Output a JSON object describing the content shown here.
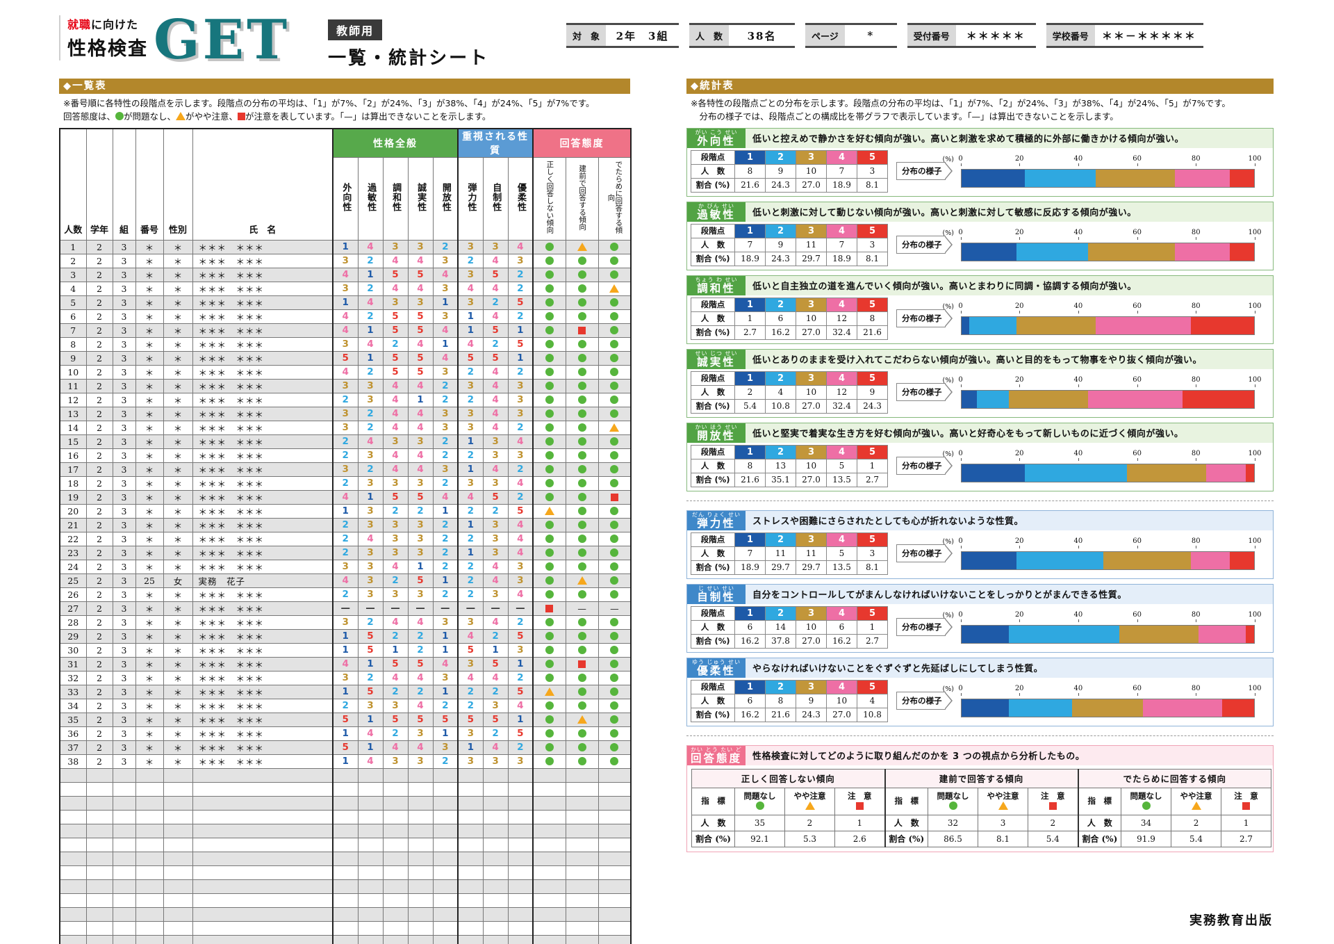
{
  "page": {
    "logo_red": "就職",
    "logo_rest": "に向けた",
    "logo_line2": "性格検査",
    "logo_mark": "GET",
    "badge": "教師用",
    "sheet_title": "一覧・統計シート",
    "publisher": "実務教育出版"
  },
  "info_boxes": [
    {
      "label": "対　象",
      "value": "2年　3組"
    },
    {
      "label": "人　数",
      "value": "38名"
    },
    {
      "label": "ページ",
      "value": "*"
    },
    {
      "label": "受付番号",
      "value": "＊＊＊＊＊"
    },
    {
      "label": "学校番号",
      "value": "＊＊－＊＊＊＊＊"
    }
  ],
  "list_section": {
    "banner": "◆一覧表",
    "note1": "※番号順に各特性の段階点を示します。段階点の分布の平均は、「1」が7%、「2」が24%、「3」が38%、「4」が24%、「5」が7%です。",
    "note2_parts": [
      {
        "t": "txt",
        "v": "回答態度は、"
      },
      {
        "t": "g"
      },
      {
        "t": "txt",
        "v": "が問題なし、"
      },
      {
        "t": "y"
      },
      {
        "t": "txt",
        "v": "がやや注意、"
      },
      {
        "t": "r"
      },
      {
        "t": "txt",
        "v": "が注意を表しています。「—」は算出できないことを示します。"
      }
    ],
    "columns": {
      "left": [
        "人数",
        "学年",
        "組",
        "番号",
        "性別",
        "氏　名"
      ],
      "groups": [
        {
          "label": "性格全般",
          "theme": "green",
          "span": 5
        },
        {
          "label": "重視される性質",
          "theme": "blue",
          "span": 3
        },
        {
          "label": "回答態度",
          "theme": "pink",
          "span": 3
        }
      ],
      "traits": [
        "外向性",
        "過敏性",
        "調和性",
        "誠実性",
        "開放性",
        "弾力性",
        "自制性",
        "優柔性"
      ],
      "attitudes": [
        "正しく回答しない傾向",
        "建前で回答する傾向",
        "でたらめに回答する傾向"
      ]
    },
    "rows": [
      [
        1,
        "2",
        "3",
        "＊",
        "＊",
        "＊＊＊　＊＊＊",
        [
          "1",
          "4",
          "3",
          "3",
          "2",
          "3",
          "3",
          "4"
        ],
        [
          "g",
          "y",
          "g"
        ]
      ],
      [
        2,
        "2",
        "3",
        "＊",
        "＊",
        "＊＊＊　＊＊＊",
        [
          "3",
          "2",
          "4",
          "4",
          "3",
          "2",
          "4",
          "3"
        ],
        [
          "g",
          "g",
          "g"
        ]
      ],
      [
        3,
        "2",
        "3",
        "＊",
        "＊",
        "＊＊＊　＊＊＊",
        [
          "4",
          "1",
          "5",
          "5",
          "4",
          "3",
          "5",
          "2"
        ],
        [
          "g",
          "g",
          "g"
        ]
      ],
      [
        4,
        "2",
        "3",
        "＊",
        "＊",
        "＊＊＊　＊＊＊",
        [
          "3",
          "2",
          "4",
          "4",
          "3",
          "4",
          "4",
          "2"
        ],
        [
          "g",
          "g",
          "y"
        ]
      ],
      [
        5,
        "2",
        "3",
        "＊",
        "＊",
        "＊＊＊　＊＊＊",
        [
          "1",
          "4",
          "3",
          "3",
          "1",
          "3",
          "2",
          "5"
        ],
        [
          "g",
          "g",
          "g"
        ]
      ],
      [
        6,
        "2",
        "3",
        "＊",
        "＊",
        "＊＊＊　＊＊＊",
        [
          "4",
          "2",
          "5",
          "5",
          "3",
          "1",
          "4",
          "2"
        ],
        [
          "g",
          "g",
          "g"
        ]
      ],
      [
        7,
        "2",
        "3",
        "＊",
        "＊",
        "＊＊＊　＊＊＊",
        [
          "4",
          "1",
          "5",
          "5",
          "4",
          "1",
          "5",
          "1"
        ],
        [
          "g",
          "r",
          "g"
        ]
      ],
      [
        8,
        "2",
        "3",
        "＊",
        "＊",
        "＊＊＊　＊＊＊",
        [
          "3",
          "4",
          "2",
          "4",
          "1",
          "4",
          "2",
          "5"
        ],
        [
          "g",
          "g",
          "g"
        ]
      ],
      [
        9,
        "2",
        "3",
        "＊",
        "＊",
        "＊＊＊　＊＊＊",
        [
          "5",
          "1",
          "5",
          "5",
          "4",
          "5",
          "5",
          "1"
        ],
        [
          "g",
          "g",
          "g"
        ]
      ],
      [
        10,
        "2",
        "3",
        "＊",
        "＊",
        "＊＊＊　＊＊＊",
        [
          "4",
          "2",
          "5",
          "5",
          "3",
          "2",
          "4",
          "2"
        ],
        [
          "g",
          "g",
          "g"
        ]
      ],
      [
        11,
        "2",
        "3",
        "＊",
        "＊",
        "＊＊＊　＊＊＊",
        [
          "3",
          "3",
          "4",
          "4",
          "2",
          "3",
          "4",
          "3"
        ],
        [
          "g",
          "g",
          "g"
        ]
      ],
      [
        12,
        "2",
        "3",
        "＊",
        "＊",
        "＊＊＊　＊＊＊",
        [
          "2",
          "3",
          "4",
          "1",
          "2",
          "2",
          "4",
          "3"
        ],
        [
          "g",
          "g",
          "g"
        ]
      ],
      [
        13,
        "2",
        "3",
        "＊",
        "＊",
        "＊＊＊　＊＊＊",
        [
          "3",
          "2",
          "4",
          "4",
          "3",
          "3",
          "4",
          "3"
        ],
        [
          "g",
          "g",
          "g"
        ]
      ],
      [
        14,
        "2",
        "3",
        "＊",
        "＊",
        "＊＊＊　＊＊＊",
        [
          "3",
          "2",
          "4",
          "4",
          "3",
          "3",
          "4",
          "2"
        ],
        [
          "g",
          "g",
          "y"
        ]
      ],
      [
        15,
        "2",
        "3",
        "＊",
        "＊",
        "＊＊＊　＊＊＊",
        [
          "2",
          "4",
          "3",
          "3",
          "2",
          "1",
          "3",
          "4"
        ],
        [
          "g",
          "g",
          "g"
        ]
      ],
      [
        16,
        "2",
        "3",
        "＊",
        "＊",
        "＊＊＊　＊＊＊",
        [
          "2",
          "3",
          "4",
          "4",
          "2",
          "2",
          "3",
          "3"
        ],
        [
          "g",
          "g",
          "g"
        ]
      ],
      [
        17,
        "2",
        "3",
        "＊",
        "＊",
        "＊＊＊　＊＊＊",
        [
          "3",
          "2",
          "4",
          "4",
          "3",
          "1",
          "4",
          "2"
        ],
        [
          "g",
          "g",
          "g"
        ]
      ],
      [
        18,
        "2",
        "3",
        "＊",
        "＊",
        "＊＊＊　＊＊＊",
        [
          "2",
          "3",
          "3",
          "3",
          "2",
          "3",
          "3",
          "4"
        ],
        [
          "g",
          "g",
          "g"
        ]
      ],
      [
        19,
        "2",
        "3",
        "＊",
        "＊",
        "＊＊＊　＊＊＊",
        [
          "4",
          "1",
          "5",
          "5",
          "4",
          "4",
          "5",
          "2"
        ],
        [
          "g",
          "g",
          "r"
        ]
      ],
      [
        20,
        "2",
        "3",
        "＊",
        "＊",
        "＊＊＊　＊＊＊",
        [
          "1",
          "3",
          "2",
          "2",
          "1",
          "2",
          "2",
          "5"
        ],
        [
          "y",
          "g",
          "g"
        ]
      ],
      [
        21,
        "2",
        "3",
        "＊",
        "＊",
        "＊＊＊　＊＊＊",
        [
          "2",
          "3",
          "3",
          "3",
          "2",
          "1",
          "3",
          "4"
        ],
        [
          "g",
          "g",
          "g"
        ]
      ],
      [
        22,
        "2",
        "3",
        "＊",
        "＊",
        "＊＊＊　＊＊＊",
        [
          "2",
          "4",
          "3",
          "3",
          "2",
          "2",
          "3",
          "4"
        ],
        [
          "g",
          "g",
          "g"
        ]
      ],
      [
        23,
        "2",
        "3",
        "＊",
        "＊",
        "＊＊＊　＊＊＊",
        [
          "2",
          "3",
          "3",
          "3",
          "2",
          "1",
          "3",
          "4"
        ],
        [
          "g",
          "g",
          "g"
        ]
      ],
      [
        24,
        "2",
        "3",
        "＊",
        "＊",
        "＊＊＊　＊＊＊",
        [
          "3",
          "3",
          "4",
          "1",
          "2",
          "2",
          "4",
          "3"
        ],
        [
          "g",
          "g",
          "g"
        ]
      ],
      [
        25,
        "2",
        "3",
        "25",
        "女",
        "実務　花子",
        [
          "4",
          "3",
          "2",
          "5",
          "1",
          "2",
          "4",
          "3"
        ],
        [
          "g",
          "y",
          "g"
        ]
      ],
      [
        26,
        "2",
        "3",
        "＊",
        "＊",
        "＊＊＊　＊＊＊",
        [
          "2",
          "3",
          "3",
          "3",
          "2",
          "2",
          "3",
          "4"
        ],
        [
          "g",
          "g",
          "g"
        ]
      ],
      [
        27,
        "2",
        "3",
        "＊",
        "＊",
        "＊＊＊　＊＊＊",
        [
          "-",
          "-",
          "-",
          "-",
          "-",
          "-",
          "-",
          "-"
        ],
        [
          "r",
          "-",
          "-"
        ]
      ],
      [
        28,
        "2",
        "3",
        "＊",
        "＊",
        "＊＊＊　＊＊＊",
        [
          "3",
          "2",
          "4",
          "4",
          "3",
          "3",
          "4",
          "2"
        ],
        [
          "g",
          "g",
          "g"
        ]
      ],
      [
        29,
        "2",
        "3",
        "＊",
        "＊",
        "＊＊＊　＊＊＊",
        [
          "1",
          "5",
          "2",
          "2",
          "1",
          "4",
          "2",
          "5"
        ],
        [
          "g",
          "g",
          "g"
        ]
      ],
      [
        30,
        "2",
        "3",
        "＊",
        "＊",
        "＊＊＊　＊＊＊",
        [
          "1",
          "5",
          "1",
          "2",
          "1",
          "5",
          "1",
          "3"
        ],
        [
          "g",
          "g",
          "g"
        ]
      ],
      [
        31,
        "2",
        "3",
        "＊",
        "＊",
        "＊＊＊　＊＊＊",
        [
          "4",
          "1",
          "5",
          "5",
          "4",
          "3",
          "5",
          "1"
        ],
        [
          "g",
          "r",
          "g"
        ]
      ],
      [
        32,
        "2",
        "3",
        "＊",
        "＊",
        "＊＊＊　＊＊＊",
        [
          "3",
          "2",
          "4",
          "4",
          "3",
          "4",
          "4",
          "2"
        ],
        [
          "g",
          "g",
          "g"
        ]
      ],
      [
        33,
        "2",
        "3",
        "＊",
        "＊",
        "＊＊＊　＊＊＊",
        [
          "1",
          "5",
          "2",
          "2",
          "1",
          "2",
          "2",
          "5"
        ],
        [
          "y",
          "g",
          "g"
        ]
      ],
      [
        34,
        "2",
        "3",
        "＊",
        "＊",
        "＊＊＊　＊＊＊",
        [
          "2",
          "3",
          "3",
          "4",
          "2",
          "2",
          "3",
          "4"
        ],
        [
          "g",
          "g",
          "g"
        ]
      ],
      [
        35,
        "2",
        "3",
        "＊",
        "＊",
        "＊＊＊　＊＊＊",
        [
          "5",
          "1",
          "5",
          "5",
          "5",
          "5",
          "5",
          "1"
        ],
        [
          "g",
          "y",
          "g"
        ]
      ],
      [
        36,
        "2",
        "3",
        "＊",
        "＊",
        "＊＊＊　＊＊＊",
        [
          "1",
          "4",
          "2",
          "3",
          "1",
          "3",
          "2",
          "5"
        ],
        [
          "g",
          "g",
          "g"
        ]
      ],
      [
        37,
        "2",
        "3",
        "＊",
        "＊",
        "＊＊＊　＊＊＊",
        [
          "5",
          "1",
          "4",
          "4",
          "3",
          "1",
          "4",
          "2"
        ],
        [
          "g",
          "g",
          "g"
        ]
      ],
      [
        38,
        "2",
        "3",
        "＊",
        "＊",
        "＊＊＊　＊＊＊",
        [
          "1",
          "4",
          "3",
          "3",
          "2",
          "3",
          "3",
          "3"
        ],
        [
          "g",
          "g",
          "g"
        ]
      ]
    ],
    "empty_rows": 15
  },
  "stats_section": {
    "banner": "◆統計表",
    "note1": "※各特性の段階点ごとの分布を示します。段階点の分布の平均は、「1」が7%、「2」が24%、「3」が38%、「4」が24%、「5」が7%です。",
    "note2": "　分布の様子では、段階点ごとの構成比を帯グラフで表示しています。「—」は算出できないことを示します。",
    "labels": {
      "grade_row": "段階点",
      "count_row": "人　数",
      "pct_row": "割合 (%)",
      "grades": [
        "1",
        "2",
        "3",
        "4",
        "5"
      ],
      "dist_label": "分布の様子",
      "axis_ticks": [
        "0",
        "20",
        "40",
        "60",
        "80",
        "100"
      ],
      "axis_unit": "(%)"
    },
    "sections": [
      {
        "name": "外向性",
        "furigana": "がい こう せい",
        "theme": "green",
        "desc": "低いと控えめで静かさを好む傾向が強い。高いと刺激を求めて積極的に外部に働きかける傾向が強い。",
        "counts": [
          "8",
          "9",
          "10",
          "7",
          "3"
        ],
        "pct": [
          "21.6",
          "24.3",
          "27.0",
          "18.9",
          "8.1"
        ]
      },
      {
        "name": "過敏性",
        "furigana": "か びん せい",
        "theme": "green",
        "desc": "低いと刺激に対して動じない傾向が強い。高いと刺激に対して敏感に反応する傾向が強い。",
        "counts": [
          "7",
          "9",
          "11",
          "7",
          "3"
        ],
        "pct": [
          "18.9",
          "24.3",
          "29.7",
          "18.9",
          "8.1"
        ]
      },
      {
        "name": "調和性",
        "furigana": "ちょう わ せい",
        "theme": "green",
        "desc": "低いと自主独立の道を進んでいく傾向が強い。高いとまわりに同調・協調する傾向が強い。",
        "counts": [
          "1",
          "6",
          "10",
          "12",
          "8"
        ],
        "pct": [
          "2.7",
          "16.2",
          "27.0",
          "32.4",
          "21.6"
        ]
      },
      {
        "name": "誠実性",
        "furigana": "せい じつ せい",
        "theme": "green",
        "desc": "低いとありのままを受け入れてこだわらない傾向が強い。高いと目的をもって物事をやり抜く傾向が強い。",
        "counts": [
          "2",
          "4",
          "10",
          "12",
          "9"
        ],
        "pct": [
          "5.4",
          "10.8",
          "27.0",
          "32.4",
          "24.3"
        ]
      },
      {
        "name": "開放性",
        "furigana": "かい ほう せい",
        "theme": "green",
        "desc": "低いと堅実で着実な生き方を好む傾向が強い。高いと好奇心をもって新しいものに近づく傾向が強い。",
        "counts": [
          "8",
          "13",
          "10",
          "5",
          "1"
        ],
        "pct": [
          "21.6",
          "35.1",
          "27.0",
          "13.5",
          "2.7"
        ]
      },
      {
        "name": "弾力性",
        "furigana": "だん りょく せい",
        "theme": "blue",
        "desc": "ストレスや困難にさらされたとしても心が折れないような性質。",
        "counts": [
          "7",
          "11",
          "11",
          "5",
          "3"
        ],
        "pct": [
          "18.9",
          "29.7",
          "29.7",
          "13.5",
          "8.1"
        ]
      },
      {
        "name": "自制性",
        "furigana": "じ せい せい",
        "theme": "blue",
        "desc": "自分をコントロールしてがまんしなければいけないことをしっかりとがまんできる性質。",
        "counts": [
          "6",
          "14",
          "10",
          "6",
          "1"
        ],
        "pct": [
          "16.2",
          "37.8",
          "27.0",
          "16.2",
          "2.7"
        ]
      },
      {
        "name": "優柔性",
        "furigana": "ゆう じゅう せい",
        "theme": "blue",
        "desc": "やらなければいけないことをぐずぐずと先延ばしにしてしまう性質。",
        "counts": [
          "6",
          "8",
          "9",
          "10",
          "4"
        ],
        "pct": [
          "16.2",
          "21.6",
          "24.3",
          "27.0",
          "10.8"
        ]
      }
    ],
    "attitude": {
      "name": "回答態度",
      "furigana": "かい とう たい ど",
      "theme": "pink",
      "desc": "性格検査に対してどのように取り組んだのかを 3 つの視点から分析したもの。",
      "row_labels": {
        "indicator": "指　標",
        "count": "人　数",
        "pct": "割合 (%)"
      },
      "indicator_labels": [
        {
          "label": "問題なし",
          "mark": "g"
        },
        {
          "label": "やや注意",
          "mark": "y"
        },
        {
          "label": "注　意",
          "mark": "r"
        }
      ],
      "groups": [
        {
          "title": "正しく回答しない傾向",
          "counts": [
            "35",
            "2",
            "1"
          ],
          "pct": [
            "92.1",
            "5.3",
            "2.6"
          ]
        },
        {
          "title": "建前で回答する傾向",
          "counts": [
            "32",
            "3",
            "2"
          ],
          "pct": [
            "86.5",
            "8.1",
            "5.4"
          ]
        },
        {
          "title": "でたらめに回答する傾向",
          "counts": [
            "34",
            "2",
            "1"
          ],
          "pct": [
            "91.9",
            "5.4",
            "2.7"
          ]
        }
      ]
    }
  },
  "colors": {
    "grade1": "#1e5aa8",
    "grade2": "#2fa8e0",
    "grade3": "#c2963a",
    "grade4": "#ee6fa5",
    "grade5": "#e7382e",
    "ok": "#56b53c",
    "warn": "#f6a71c",
    "alert": "#e7382e",
    "banner": "#b3872b",
    "green": "#52a344",
    "blue": "#3f88c9",
    "pink": "#f0718f"
  }
}
